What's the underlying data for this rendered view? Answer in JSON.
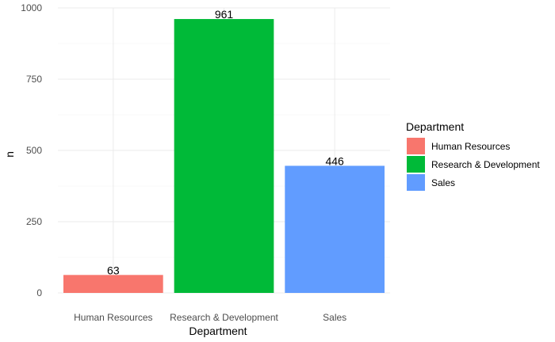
{
  "chart_data": {
    "type": "bar",
    "categories": [
      "Human Resources",
      "Research & Development",
      "Sales"
    ],
    "values": [
      63,
      961,
      446
    ],
    "data_labels": [
      "63",
      "961",
      "446"
    ],
    "colors": [
      "#F8766D",
      "#00BA38",
      "#619CFF"
    ],
    "xlabel": "Department",
    "ylabel": "n",
    "ylim": [
      0,
      1000
    ],
    "yticks": [
      0,
      250,
      500,
      750,
      1000
    ],
    "ytick_labels": [
      "0",
      "250",
      "500",
      "750",
      "1000"
    ],
    "grid": true,
    "legend": {
      "title": "Department",
      "position": "right",
      "entries": [
        "Human Resources",
        "Research & Development",
        "Sales"
      ]
    }
  }
}
